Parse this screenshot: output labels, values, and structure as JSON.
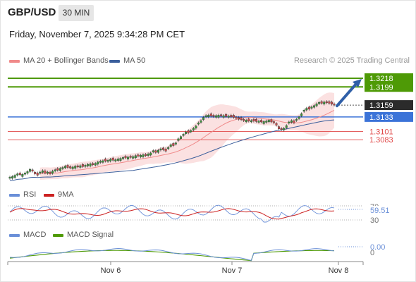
{
  "header": {
    "pair": "GBP/USD",
    "timeframe": "30 MIN",
    "datetime": "Friday, November 7, 2025 9:34:28 PM CET"
  },
  "legend": {
    "ma20": "MA 20 + Bollinger Bands",
    "ma50": "MA 50",
    "credit": "Research © 2025 Trading Central"
  },
  "colors": {
    "green": "#4e9a06",
    "blue": "#3b73d8",
    "red": "#e04848",
    "dark": "#2b2b2b",
    "band": "#fbe1e1",
    "ma20": "#f08a8a",
    "ma50": "#3b5f9c",
    "arrow": "#2f5fa8",
    "rsi": "#6a8fd8",
    "rsi_ma": "#cc2222",
    "macd": "#6a8fd8",
    "macd_signal": "#4e9a06"
  },
  "chart_data": [
    {
      "type": "candlestick",
      "instrument": "GBP/USD",
      "timeframe": "30 MIN",
      "x_ticks": [
        "Nov 6",
        "Nov 7",
        "Nov 8"
      ],
      "ylim": [
        1.2995,
        1.3235
      ],
      "candles_close": [
        1.3001,
        1.3002,
        1.3005,
        1.3008,
        1.3006,
        1.3007,
        1.301,
        1.3013,
        1.3018,
        1.3014,
        1.3008,
        1.3005,
        1.3012,
        1.3015,
        1.301,
        1.3012,
        1.3008,
        1.3014,
        1.3017,
        1.3016,
        1.302,
        1.3022,
        1.3025,
        1.3022,
        1.3021,
        1.3023,
        1.3025,
        1.3023,
        1.3026,
        1.3024,
        1.3027,
        1.3029,
        1.303,
        1.3028,
        1.3031,
        1.3034,
        1.3036,
        1.3037,
        1.3036,
        1.3038,
        1.304,
        1.3038,
        1.3039,
        1.3041,
        1.3042,
        1.3044,
        1.3043,
        1.3045,
        1.3044,
        1.3046,
        1.3048,
        1.3047,
        1.3049,
        1.305,
        1.3048,
        1.3052,
        1.3054,
        1.3059,
        1.3055,
        1.306,
        1.3063,
        1.3061,
        1.3058,
        1.3066,
        1.3072,
        1.307,
        1.3076,
        1.3085,
        1.309,
        1.3095,
        1.31,
        1.3098,
        1.3103,
        1.3108,
        1.3113,
        1.312,
        1.3125,
        1.3132,
        1.3136,
        1.3137,
        1.3135,
        1.3134,
        1.3136,
        1.3137,
        1.3135,
        1.3136,
        1.3134,
        1.3135,
        1.3133,
        1.3132,
        1.313,
        1.3128,
        1.3127,
        1.3125,
        1.3126,
        1.3124,
        1.3125,
        1.3124,
        1.3123,
        1.3124,
        1.3122,
        1.3123,
        1.3124,
        1.3126,
        1.3122,
        1.312,
        1.3115,
        1.3107,
        1.3105,
        1.3108,
        1.3114,
        1.3122,
        1.3125,
        1.312,
        1.3128,
        1.3133,
        1.314,
        1.3148,
        1.3152,
        1.315,
        1.3155,
        1.3158,
        1.3162,
        1.3165,
        1.3163,
        1.3166,
        1.3164,
        1.3163,
        1.3161,
        1.3159
      ],
      "candles_change": [
        1,
        1,
        1,
        1,
        -1,
        1,
        1,
        1,
        1,
        -1,
        -1,
        -1,
        1,
        1,
        -1,
        1,
        -1,
        1,
        1,
        -1,
        1,
        1,
        1,
        -1,
        -1,
        1,
        1,
        -1,
        1,
        -1,
        1,
        1,
        1,
        -1,
        1,
        1,
        1,
        1,
        -1,
        1,
        1,
        -1,
        1,
        1,
        1,
        1,
        -1,
        1,
        -1,
        1,
        1,
        -1,
        1,
        1,
        -1,
        1,
        1,
        1,
        -1,
        1,
        1,
        -1,
        -1,
        1,
        1,
        -1,
        1,
        1,
        1,
        1,
        1,
        -1,
        1,
        1,
        1,
        1,
        1,
        1,
        1,
        1,
        -1,
        -1,
        1,
        1,
        -1,
        1,
        -1,
        1,
        -1,
        -1,
        -1,
        -1,
        -1,
        -1,
        1,
        -1,
        1,
        -1,
        -1,
        1,
        -1,
        1,
        1,
        1,
        -1,
        -1,
        -1,
        -1,
        -1,
        1,
        1,
        1,
        1,
        -1,
        1,
        1,
        1,
        1,
        1,
        -1,
        1,
        1,
        1,
        1,
        -1,
        1,
        -1,
        -1,
        -1,
        -1
      ],
      "last_price": 1.3159,
      "resistance_levels": [
        1.3218,
        1.3199
      ],
      "pivot": 1.3133,
      "support_levels": [
        1.3101,
        1.3083
      ],
      "bias": "bullish towards 1.3218"
    },
    {
      "type": "line",
      "name": "RSI",
      "series": [
        {
          "name": "RSI"
        },
        {
          "name": "9MA"
        }
      ],
      "y_ticks": [
        70,
        30
      ],
      "last_value": 59.51
    },
    {
      "type": "line",
      "name": "MACD",
      "series": [
        {
          "name": "MACD"
        },
        {
          "name": "MACD Signal"
        }
      ],
      "y_ticks": [
        0
      ],
      "last_value": 0.0
    }
  ],
  "price_labels": {
    "r1": "1.3218",
    "r2": "1.3199",
    "last": "1.3159",
    "pivot": "1.3133",
    "s1": "1.3101",
    "s2": "1.3083"
  },
  "rsi_panel": {
    "label": "RSI",
    "ma_label": "9MA",
    "tick_70": "70",
    "tick_30": "30",
    "value": "59.51"
  },
  "macd_panel": {
    "label": "MACD",
    "signal_label": "MACD Signal",
    "tick_0": "0",
    "value": "0.00"
  },
  "x_axis": {
    "t1": "Nov 6",
    "t2": "Nov 7",
    "t3": "Nov 8"
  }
}
